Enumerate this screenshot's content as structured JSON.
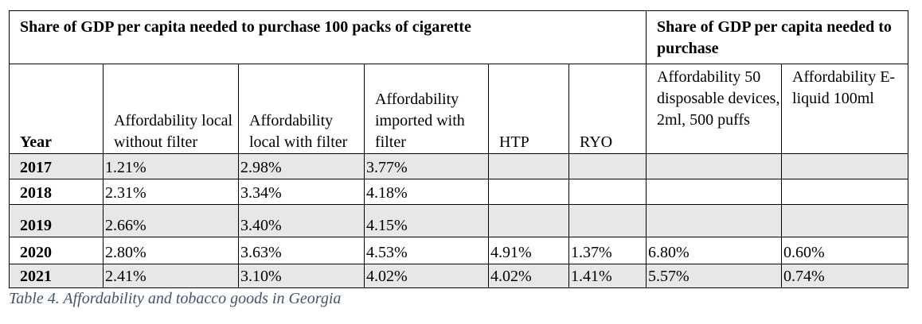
{
  "header": {
    "left": "Share of GDP per capita needed to purchase 100 packs of cigarette",
    "right": "Share of GDP per capita needed to purchase"
  },
  "columns": {
    "year": "Year",
    "local_without_filter": "Affordability local without filter",
    "local_with_filter": "Affordability local with filter",
    "imported_with_filter": "Affordability imported with filter",
    "htp": "HTP",
    "ryo": "RYO",
    "disposable": "Affordability 50 disposable devices, 2ml, 500 puffs",
    "eliquid": "Affordability E-liquid 100ml"
  },
  "rows": [
    {
      "year": "2017",
      "a": "1.21%",
      "b": "2.98%",
      "c": "3.77%",
      "htp": "",
      "ryo": "",
      "d": "",
      "e": ""
    },
    {
      "year": "2018",
      "a": "2.31%",
      "b": "3.34%",
      "c": "4.18%",
      "htp": "",
      "ryo": "",
      "d": "",
      "e": ""
    },
    {
      "year": "2019",
      "a": "2.66%",
      "b": "3.40%",
      "c": "4.15%",
      "htp": "",
      "ryo": "",
      "d": "",
      "e": ""
    },
    {
      "year": "2020",
      "a": "2.80%",
      "b": "3.63%",
      "c": "4.53%",
      "htp": "4.91%",
      "ryo": "1.37%",
      "d": "6.80%",
      "e": "0.60%"
    },
    {
      "year": "2021",
      "a": "2.41%",
      "b": "3.10%",
      "c": "4.02%",
      "htp": "4.02%",
      "ryo": "1.41%",
      "d": "5.57%",
      "e": "0.74%"
    }
  ],
  "caption": "Table 4. Affordability and tobacco goods in Georgia"
}
